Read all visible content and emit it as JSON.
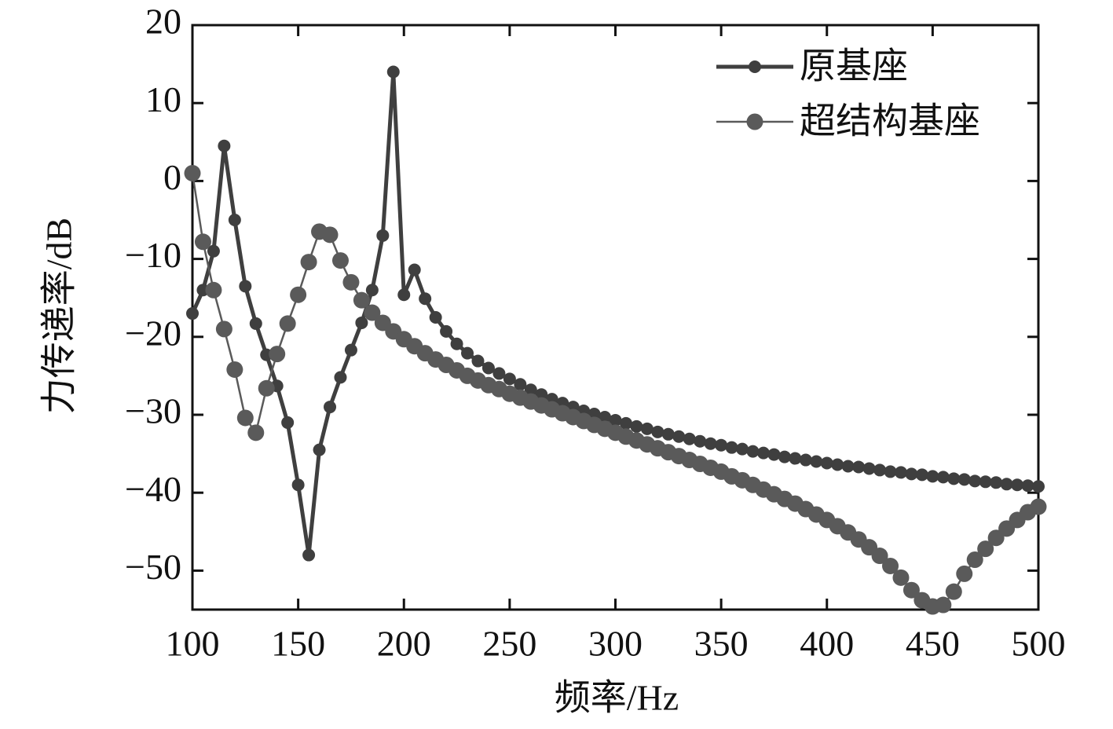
{
  "chart_data": {
    "type": "line",
    "xlabel": "频率/Hz",
    "ylabel": "力传递率/dB",
    "x": [
      100,
      105,
      110,
      115,
      120,
      125,
      130,
      135,
      140,
      145,
      150,
      155,
      160,
      165,
      170,
      175,
      180,
      185,
      190,
      195,
      200,
      205,
      210,
      215,
      220,
      225,
      230,
      235,
      240,
      245,
      250,
      255,
      260,
      265,
      270,
      275,
      280,
      285,
      290,
      295,
      300,
      305,
      310,
      315,
      320,
      325,
      330,
      335,
      340,
      345,
      350,
      355,
      360,
      365,
      370,
      375,
      380,
      385,
      390,
      395,
      400,
      405,
      410,
      415,
      420,
      425,
      430,
      435,
      440,
      445,
      450,
      455,
      460,
      465,
      470,
      475,
      480,
      485,
      490,
      495,
      500
    ],
    "series": [
      {
        "name": "原基座",
        "color": "#3f3f3f",
        "values": [
          -17,
          -14,
          -9,
          4.5,
          -5,
          -13.5,
          -18.3,
          -22.3,
          -26.3,
          -31,
          -39,
          -48,
          -34.5,
          -29,
          -25.2,
          -21.7,
          -18.2,
          -14,
          -7,
          14,
          -14.6,
          -11.4,
          -15.1,
          -17.5,
          -19.3,
          -20.9,
          -22.1,
          -23.1,
          -24.0,
          -24.7,
          -25.4,
          -26.1,
          -26.8,
          -27.4,
          -28.0,
          -28.5,
          -29.0,
          -29.5,
          -29.9,
          -30.3,
          -30.7,
          -31.1,
          -31.5,
          -31.8,
          -32.2,
          -32.5,
          -32.8,
          -33.1,
          -33.4,
          -33.7,
          -33.9,
          -34.2,
          -34.4,
          -34.7,
          -34.9,
          -35.1,
          -35.4,
          -35.6,
          -35.8,
          -36.0,
          -36.2,
          -36.4,
          -36.6,
          -36.7,
          -36.9,
          -37.1,
          -37.3,
          -37.4,
          -37.6,
          -37.7,
          -37.9,
          -38.0,
          -38.2,
          -38.3,
          -38.5,
          -38.6,
          -38.7,
          -38.9,
          -39.0,
          -39.1,
          -39.2
        ]
      },
      {
        "name": "超结构基座",
        "color": "#5a5a5a",
        "values": [
          1,
          -7.8,
          -14,
          -19,
          -24.2,
          -30.4,
          -32.3,
          -26.6,
          -22.2,
          -18.3,
          -14.6,
          -10.4,
          -6.5,
          -6.9,
          -10.2,
          -13,
          -15.3,
          -16.9,
          -18.2,
          -19.3,
          -20.3,
          -21.2,
          -22.1,
          -22.9,
          -23.6,
          -24.3,
          -25.0,
          -25.6,
          -26.2,
          -26.7,
          -27.3,
          -27.8,
          -28.3,
          -28.8,
          -29.3,
          -29.8,
          -30.3,
          -30.8,
          -31.3,
          -31.8,
          -32.3,
          -32.8,
          -33.3,
          -33.8,
          -34.3,
          -34.8,
          -35.3,
          -35.8,
          -36.3,
          -36.8,
          -37.3,
          -37.9,
          -38.4,
          -39.0,
          -39.6,
          -40.2,
          -40.8,
          -41.4,
          -42.1,
          -42.8,
          -43.5,
          -44.3,
          -45.1,
          -46.0,
          -47.0,
          -48.1,
          -49.4,
          -50.9,
          -52.5,
          -53.8,
          -54.6,
          -54.4,
          -52.7,
          -50.4,
          -48.6,
          -47.2,
          -45.8,
          -44.6,
          -43.5,
          -42.5,
          -41.8
        ]
      }
    ],
    "xlim": [
      100,
      500
    ],
    "xticks": [
      100,
      150,
      200,
      250,
      300,
      350,
      400,
      450,
      500
    ],
    "ylim": [
      -55,
      20
    ],
    "yticks": [
      {
        "value": -50,
        "label": "−50"
      },
      {
        "value": -40,
        "label": "−40"
      },
      {
        "value": -30,
        "label": "−30"
      },
      {
        "value": -20,
        "label": "−20"
      },
      {
        "value": -10,
        "label": "−10"
      },
      0,
      10,
      20
    ],
    "legend": "upper right",
    "grid": false
  }
}
